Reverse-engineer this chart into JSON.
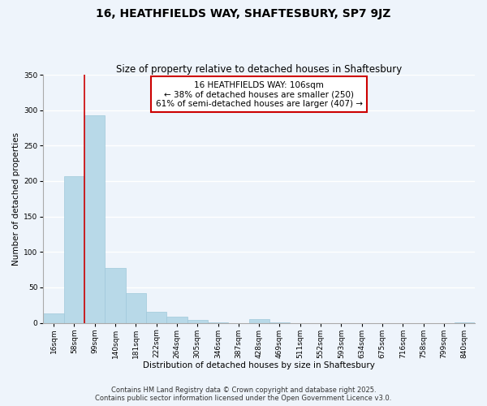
{
  "title": "16, HEATHFIELDS WAY, SHAFTESBURY, SP7 9JZ",
  "subtitle": "Size of property relative to detached houses in Shaftesbury",
  "xlabel": "Distribution of detached houses by size in Shaftesbury",
  "ylabel": "Number of detached properties",
  "bin_labels": [
    "16sqm",
    "58sqm",
    "99sqm",
    "140sqm",
    "181sqm",
    "222sqm",
    "264sqm",
    "305sqm",
    "346sqm",
    "387sqm",
    "428sqm",
    "469sqm",
    "511sqm",
    "552sqm",
    "593sqm",
    "634sqm",
    "675sqm",
    "716sqm",
    "758sqm",
    "799sqm",
    "840sqm"
  ],
  "bar_heights": [
    13,
    207,
    293,
    77,
    42,
    15,
    9,
    4,
    1,
    0,
    5,
    1,
    0,
    0,
    0,
    0,
    0,
    0,
    0,
    0,
    1
  ],
  "bar_color": "#b8d9e8",
  "bar_edge_color": "#9fc8da",
  "ylim": [
    0,
    350
  ],
  "yticks": [
    0,
    50,
    100,
    150,
    200,
    250,
    300,
    350
  ],
  "vline_x_idx": 2,
  "vline_color": "#cc0000",
  "annotation_title": "16 HEATHFIELDS WAY: 106sqm",
  "annotation_line1": "← 38% of detached houses are smaller (250)",
  "annotation_line2": "61% of semi-detached houses are larger (407) →",
  "annotation_box_color": "#ffffff",
  "annotation_box_edge": "#cc0000",
  "footer_line1": "Contains HM Land Registry data © Crown copyright and database right 2025.",
  "footer_line2": "Contains public sector information licensed under the Open Government Licence v3.0.",
  "bg_color": "#eef4fb",
  "grid_color": "#ffffff",
  "title_fontsize": 10,
  "subtitle_fontsize": 8.5,
  "axis_label_fontsize": 7.5,
  "tick_fontsize": 6.5,
  "annotation_fontsize": 7.5,
  "footer_fontsize": 6
}
